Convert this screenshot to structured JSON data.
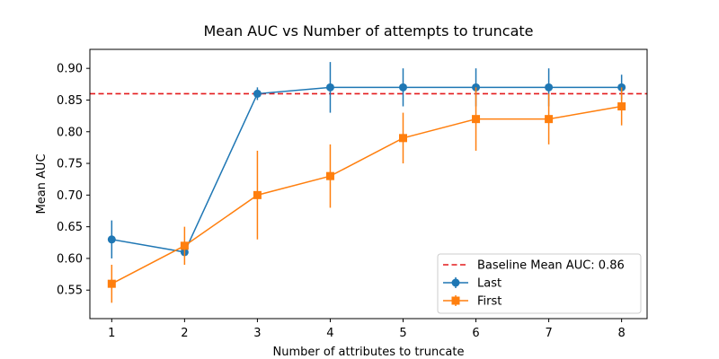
{
  "chart_data": {
    "type": "line",
    "title": "Mean AUC vs Number of attempts to truncate",
    "xlabel": "Number of attributes to truncate",
    "ylabel": "Mean AUC",
    "xlim": [
      0.7,
      8.35
    ],
    "ylim": [
      0.505,
      0.93
    ],
    "x_ticks": [
      1,
      2,
      3,
      4,
      5,
      6,
      7,
      8
    ],
    "x_tick_labels": [
      "1",
      "2",
      "3",
      "4",
      "5",
      "6",
      "7",
      "8"
    ],
    "y_ticks": [
      0.55,
      0.6,
      0.65,
      0.7,
      0.75,
      0.8,
      0.85,
      0.9
    ],
    "y_tick_labels": [
      "0.55",
      "0.60",
      "0.65",
      "0.70",
      "0.75",
      "0.80",
      "0.85",
      "0.90"
    ],
    "grid": false,
    "legend_position": "lower-right",
    "baseline": {
      "name": "Baseline Mean AUC: 0.86",
      "value": 0.86,
      "color": "#e41a1c",
      "style": "dashed"
    },
    "x": [
      1,
      2,
      3,
      4,
      5,
      6,
      7,
      8
    ],
    "series": [
      {
        "name": "Last",
        "color": "#1f77b4",
        "marker": "circle",
        "values": [
          0.63,
          0.61,
          0.86,
          0.87,
          0.87,
          0.87,
          0.87,
          0.87
        ],
        "errors": [
          0.03,
          0.005,
          0.01,
          0.04,
          0.03,
          0.03,
          0.03,
          0.02
        ]
      },
      {
        "name": "First",
        "color": "#ff7f0e",
        "marker": "square",
        "values": [
          0.56,
          0.62,
          0.7,
          0.73,
          0.79,
          0.82,
          0.82,
          0.84
        ],
        "errors": [
          0.03,
          0.03,
          0.07,
          0.05,
          0.04,
          0.05,
          0.04,
          0.03
        ]
      }
    ]
  }
}
